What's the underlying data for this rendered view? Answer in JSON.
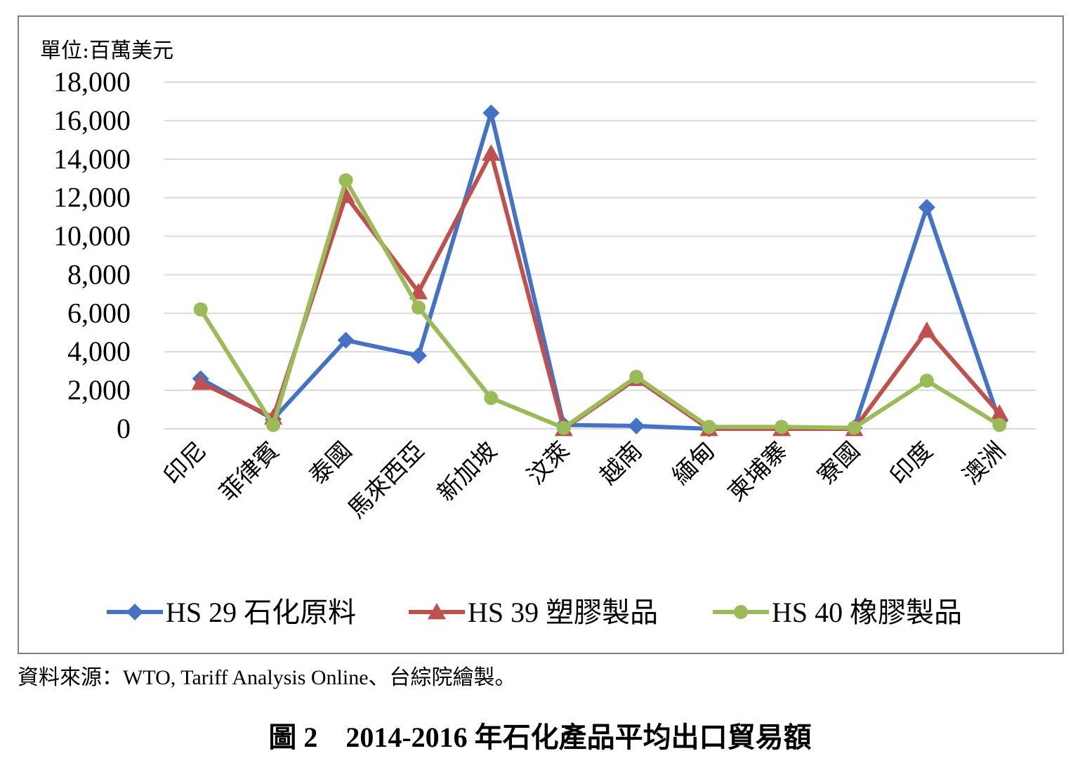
{
  "chart_data": {
    "type": "line",
    "unit_label": "單位:百萬美元",
    "ylim": [
      0,
      18000
    ],
    "y_ticks": [
      "0",
      "2,000",
      "4,000",
      "6,000",
      "8,000",
      "10,000",
      "12,000",
      "14,000",
      "16,000",
      "18,000"
    ],
    "y_tick_values": [
      0,
      2000,
      4000,
      6000,
      8000,
      10000,
      12000,
      14000,
      16000,
      18000
    ],
    "grid": true,
    "legend_position": "bottom",
    "categories": [
      "印尼",
      "菲律賓",
      "泰國",
      "馬來西亞",
      "新加坡",
      "汶萊",
      "越南",
      "緬甸",
      "柬埔寨",
      "寮國",
      "印度",
      "澳洲"
    ],
    "series": [
      {
        "name": "HS 29 石化原料",
        "color": "#4472c4",
        "marker": "diamond",
        "values": [
          2600,
          500,
          4600,
          3800,
          16400,
          200,
          150,
          0,
          50,
          50,
          11500,
          400
        ]
      },
      {
        "name": "HS 39 塑膠製品",
        "color": "#c0504d",
        "marker": "triangle",
        "values": [
          2400,
          600,
          12100,
          7100,
          14300,
          0,
          2600,
          0,
          0,
          0,
          5100,
          800
        ]
      },
      {
        "name": "HS 40 橡膠製品",
        "color": "#9bbb59",
        "marker": "circle",
        "values": [
          6200,
          200,
          12900,
          6300,
          1600,
          50,
          2700,
          100,
          100,
          50,
          2500,
          200
        ]
      }
    ]
  },
  "source_note": "資料來源：WTO, Tariff Analysis Online、台綜院繪製。",
  "caption": "圖 2　2014-2016 年石化產品平均出口貿易額"
}
